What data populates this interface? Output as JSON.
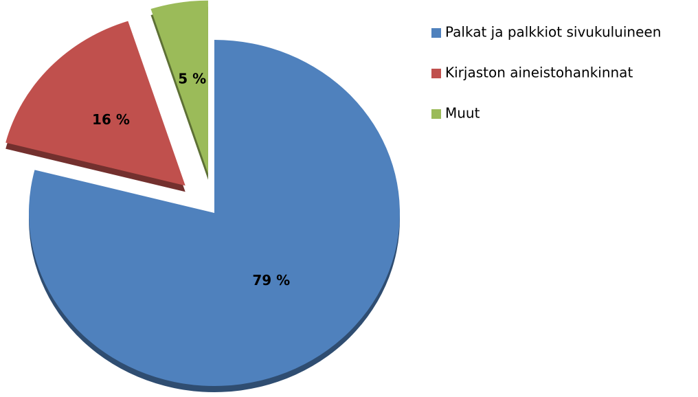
{
  "chart_data": {
    "type": "pie",
    "categories": [
      "Palkat ja palkkiot sivukuluineen",
      "Kirjaston aineistohankinnat",
      "Muut"
    ],
    "values": [
      79,
      16,
      5
    ],
    "value_labels": [
      "79 %",
      "16 %",
      "5 %"
    ],
    "colors": [
      "#4f81bd",
      "#c0504d",
      "#9bbb59"
    ],
    "legend": "right"
  }
}
